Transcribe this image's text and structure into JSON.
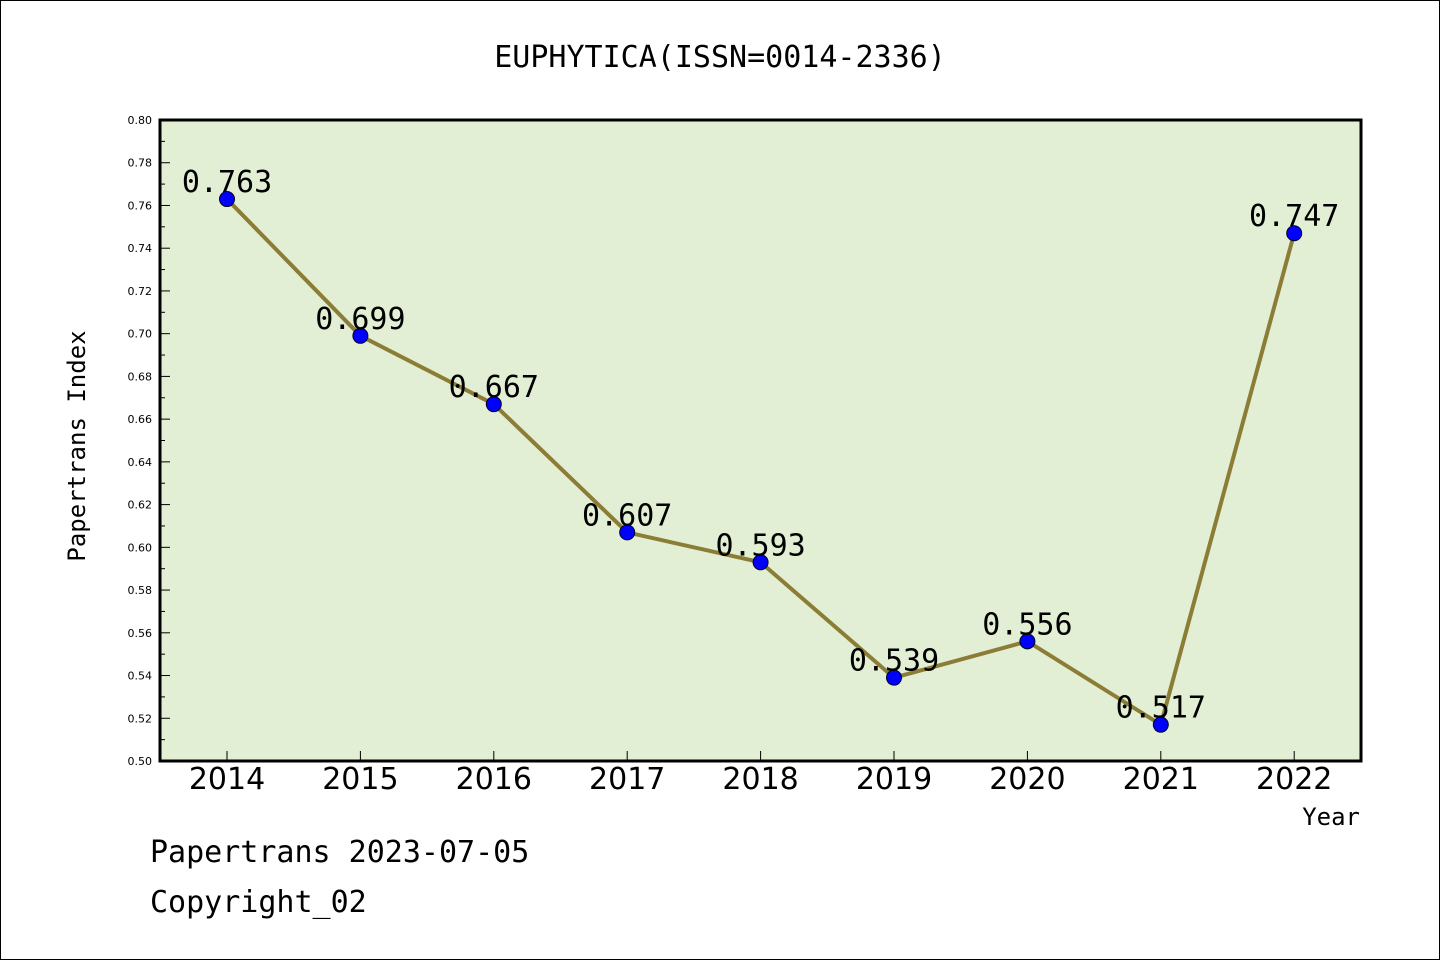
{
  "chart_data": {
    "type": "line",
    "title": "EUPHYTICA(ISSN=0014-2336)",
    "xlabel": "Year",
    "ylabel": "Papertrans Index",
    "categories": [
      "2014",
      "2015",
      "2016",
      "2017",
      "2018",
      "2019",
      "2020",
      "2021",
      "2022"
    ],
    "series": [
      {
        "values": [
          0.763,
          0.699,
          0.667,
          0.607,
          0.593,
          0.539,
          0.556,
          0.517,
          0.747
        ]
      }
    ],
    "data_labels": [
      "0.763",
      "0.699",
      "0.667",
      "0.607",
      "0.593",
      "0.539",
      "0.556",
      "0.517",
      "0.747"
    ],
    "ylim": [
      0.5,
      0.8
    ],
    "yticks": [
      "0.50",
      "0.52",
      "0.54",
      "0.56",
      "0.58",
      "0.60",
      "0.62",
      "0.64",
      "0.66",
      "0.68",
      "0.70",
      "0.72",
      "0.74",
      "0.76",
      "0.78",
      "0.80"
    ],
    "grid": false,
    "colors": {
      "plot_background": "#e2efd5",
      "line": "#8b7d35",
      "marker": "#0000ff"
    }
  },
  "footer": {
    "source_date": "Papertrans 2023-07-05",
    "copyright": "Copyright_02"
  }
}
